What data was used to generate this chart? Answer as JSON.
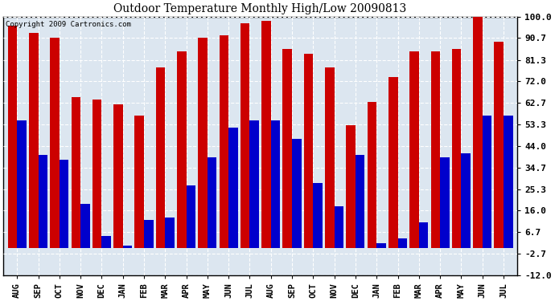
{
  "title": "Outdoor Temperature Monthly High/Low 20090813",
  "copyright": "Copyright 2009 Cartronics.com",
  "months": [
    "AUG",
    "SEP",
    "OCT",
    "NOV",
    "DEC",
    "JAN",
    "FEB",
    "MAR",
    "APR",
    "MAY",
    "JUN",
    "JUL",
    "AUG",
    "SEP",
    "OCT",
    "NOV",
    "DEC",
    "JAN",
    "FEB",
    "MAR",
    "APR",
    "MAY",
    "JUN",
    "JUL"
  ],
  "highs": [
    96,
    93,
    91,
    65,
    64,
    62,
    57,
    78,
    85,
    91,
    92,
    97,
    98,
    86,
    84,
    78,
    53,
    63,
    74,
    85,
    85,
    86,
    101,
    89
  ],
  "lows": [
    55,
    40,
    38,
    19,
    5,
    1,
    12,
    13,
    27,
    39,
    52,
    55,
    55,
    47,
    28,
    18,
    40,
    2,
    4,
    11,
    39,
    41,
    57,
    57
  ],
  "high_color": "#CC0000",
  "low_color": "#0000CC",
  "bg_color": "#ffffff",
  "plot_bg": "#dce6f0",
  "grid_color": "#ffffff",
  "yticks": [
    -12.0,
    -2.7,
    6.7,
    16.0,
    25.3,
    34.7,
    44.0,
    53.3,
    62.7,
    72.0,
    81.3,
    90.7,
    100.0
  ],
  "ymin": -12.0,
  "ymax": 100.0,
  "bar_width": 0.44
}
